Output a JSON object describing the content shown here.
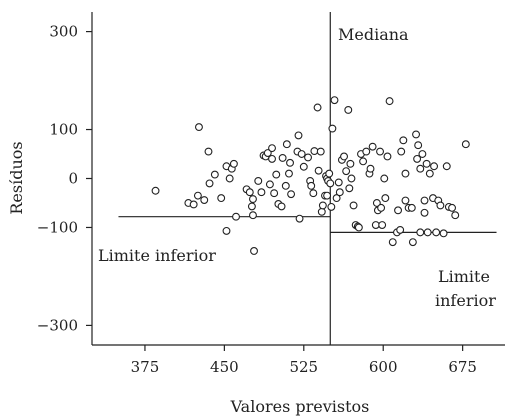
{
  "chart_data": {
    "type": "scatter",
    "xlabel": "Valores previstos",
    "ylabel": "Resíduos",
    "xlim": [
      325,
      715
    ],
    "ylim": [
      -340,
      340
    ],
    "xticks": [
      375,
      450,
      525,
      600,
      675
    ],
    "xtick_labels": [
      "375",
      "450",
      "525",
      "600",
      "675"
    ],
    "yticks": [
      300,
      100,
      0,
      -100,
      -300
    ],
    "ytick_labels": [
      "300",
      "100",
      "0",
      "−100",
      "−300"
    ],
    "grid": false,
    "legend": "none",
    "median": {
      "x": 550,
      "label": "Mediana"
    },
    "lower_limits": [
      {
        "y": -78,
        "x_range": [
          350,
          550
        ],
        "label": "Limite inferior"
      },
      {
        "y": -110,
        "x_range": [
          550,
          707
        ],
        "label_lines": [
          "Limite",
          "inferior"
        ]
      }
    ],
    "points": [
      [
        385,
        -25
      ],
      [
        416,
        -50
      ],
      [
        421,
        -53
      ],
      [
        425,
        -35
      ],
      [
        431,
        -44
      ],
      [
        426,
        105
      ],
      [
        435,
        55
      ],
      [
        436,
        -10
      ],
      [
        441,
        8
      ],
      [
        447,
        -40
      ],
      [
        452,
        25
      ],
      [
        452,
        -107
      ],
      [
        455,
        0
      ],
      [
        457,
        20
      ],
      [
        459,
        30
      ],
      [
        461,
        -78
      ],
      [
        471,
        -22
      ],
      [
        474,
        -28
      ],
      [
        476,
        -57
      ],
      [
        477,
        -42
      ],
      [
        477,
        -75
      ],
      [
        478,
        -148
      ],
      [
        482,
        -5
      ],
      [
        485,
        -28
      ],
      [
        487,
        47
      ],
      [
        489,
        45
      ],
      [
        491,
        52
      ],
      [
        493,
        -12
      ],
      [
        495,
        62
      ],
      [
        495,
        40
      ],
      [
        497,
        -30
      ],
      [
        499,
        8
      ],
      [
        501,
        -52
      ],
      [
        504,
        -57
      ],
      [
        505,
        42
      ],
      [
        508,
        -15
      ],
      [
        509,
        70
      ],
      [
        511,
        10
      ],
      [
        512,
        32
      ],
      [
        513,
        -32
      ],
      [
        519,
        55
      ],
      [
        520,
        88
      ],
      [
        521,
        -82
      ],
      [
        523,
        50
      ],
      [
        525,
        24
      ],
      [
        529,
        43
      ],
      [
        531,
        -5
      ],
      [
        532,
        -15
      ],
      [
        534,
        -30
      ],
      [
        535,
        56
      ],
      [
        538,
        145
      ],
      [
        539,
        16
      ],
      [
        541,
        55
      ],
      [
        542,
        -68
      ],
      [
        543,
        -55
      ],
      [
        545,
        -35
      ],
      [
        546,
        5
      ],
      [
        547,
        -35
      ],
      [
        547,
        0
      ],
      [
        548,
        -5
      ],
      [
        549,
        10
      ],
      [
        550,
        -10
      ],
      [
        551,
        -58
      ],
      [
        552,
        102
      ],
      [
        554,
        160
      ],
      [
        556,
        -40
      ],
      [
        558,
        -8
      ],
      [
        559,
        -28
      ],
      [
        561,
        38
      ],
      [
        563,
        45
      ],
      [
        565,
        15
      ],
      [
        567,
        140
      ],
      [
        568,
        -20
      ],
      [
        569,
        30
      ],
      [
        570,
        0
      ],
      [
        572,
        -55
      ],
      [
        574,
        -95
      ],
      [
        576,
        -98
      ],
      [
        577,
        -100
      ],
      [
        579,
        50
      ],
      [
        581,
        35
      ],
      [
        584,
        55
      ],
      [
        587,
        10
      ],
      [
        588,
        20
      ],
      [
        590,
        65
      ],
      [
        593,
        -95
      ],
      [
        594,
        -50
      ],
      [
        595,
        -65
      ],
      [
        597,
        55
      ],
      [
        598,
        -60
      ],
      [
        599,
        -95
      ],
      [
        601,
        0
      ],
      [
        602,
        -40
      ],
      [
        604,
        45
      ],
      [
        606,
        158
      ],
      [
        609,
        -130
      ],
      [
        613,
        -110
      ],
      [
        614,
        -65
      ],
      [
        616,
        -105
      ],
      [
        617,
        55
      ],
      [
        619,
        78
      ],
      [
        621,
        10
      ],
      [
        621,
        -45
      ],
      [
        624,
        -60
      ],
      [
        627,
        -60
      ],
      [
        628,
        -130
      ],
      [
        631,
        90
      ],
      [
        632,
        40
      ],
      [
        633,
        68
      ],
      [
        635,
        -110
      ],
      [
        635,
        20
      ],
      [
        637,
        50
      ],
      [
        639,
        -45
      ],
      [
        639,
        -70
      ],
      [
        641,
        30
      ],
      [
        642,
        -110
      ],
      [
        644,
        10
      ],
      [
        647,
        -40
      ],
      [
        648,
        25
      ],
      [
        650,
        -110
      ],
      [
        652,
        -45
      ],
      [
        654,
        -55
      ],
      [
        657,
        -112
      ],
      [
        660,
        25
      ],
      [
        662,
        -58
      ],
      [
        665,
        -60
      ],
      [
        668,
        -75
      ],
      [
        678,
        70
      ]
    ]
  }
}
